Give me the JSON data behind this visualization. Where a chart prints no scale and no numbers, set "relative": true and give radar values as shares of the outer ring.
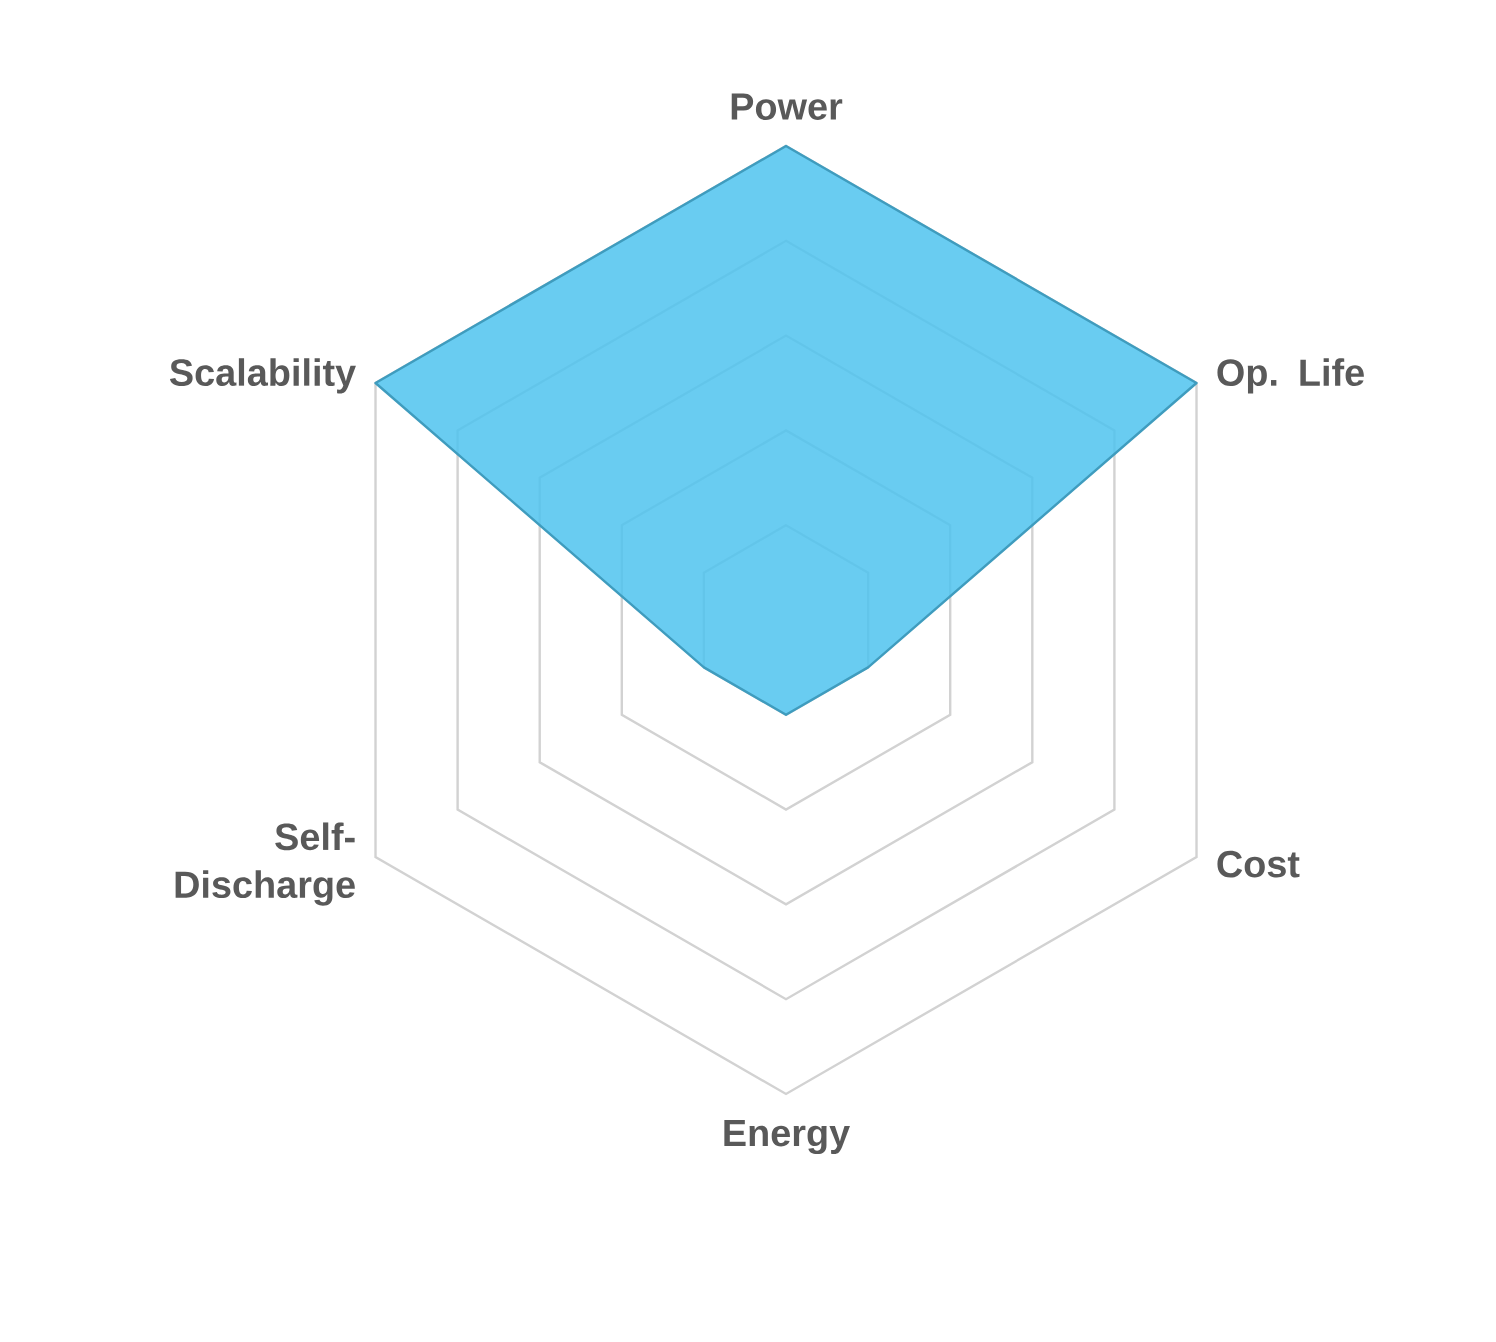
{
  "chart_data": {
    "type": "radar",
    "relative": true,
    "grid": true,
    "categories": [
      "Power",
      "Op. Life",
      "Cost",
      "Energy",
      "Self-Discharge",
      "Scalability"
    ],
    "series": [
      {
        "color": "#4fc3ee",
        "values": [
          1,
          1,
          0.2,
          0.2,
          0.2,
          1
        ]
      }
    ]
  }
}
